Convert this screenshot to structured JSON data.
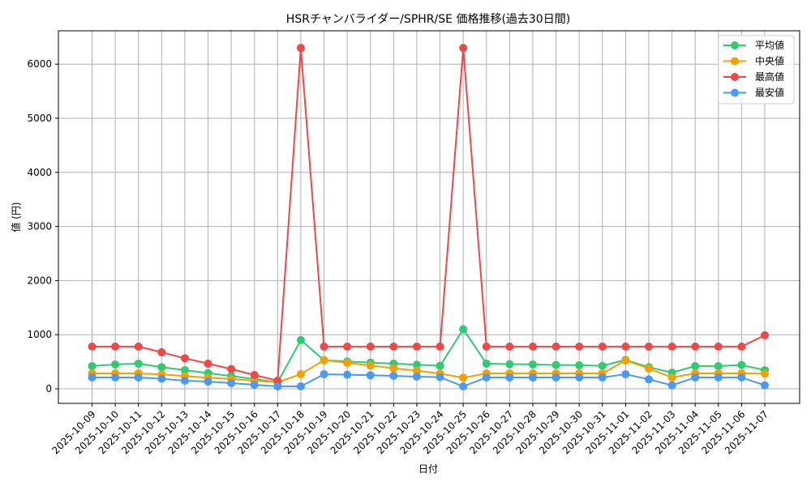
{
  "chart_data": {
    "type": "line",
    "title": "HSRチャンバライダー/SPHR/SE 価格推移(過去30日間)",
    "xlabel": "日付",
    "ylabel": "値 (円)",
    "ylim": [
      -250,
      6600
    ],
    "yticks": [
      0,
      1000,
      2000,
      3000,
      4000,
      5000,
      6000
    ],
    "grid": true,
    "legend_position": "upper right",
    "x": [
      "2025-10-09",
      "2025-10-10",
      "2025-10-11",
      "2025-10-12",
      "2025-10-13",
      "2025-10-14",
      "2025-10-15",
      "2025-10-16",
      "2025-10-17",
      "2025-10-18",
      "2025-10-19",
      "2025-10-20",
      "2025-10-21",
      "2025-10-22",
      "2025-10-23",
      "2025-10-24",
      "2025-10-25",
      "2025-10-26",
      "2025-10-27",
      "2025-10-28",
      "2025-10-29",
      "2025-10-30",
      "2025-10-31",
      "2025-11-01",
      "2025-11-02",
      "2025-11-03",
      "2025-11-04",
      "2025-11-05",
      "2025-11-06",
      "2025-11-07"
    ],
    "series": [
      {
        "name": "平均値",
        "color": "#2ecc71",
        "values": [
          420,
          450,
          465,
          400,
          345,
          290,
          235,
          180,
          120,
          900,
          530,
          505,
          485,
          465,
          445,
          425,
          1100,
          465,
          455,
          450,
          440,
          435,
          425,
          535,
          400,
          300,
          420,
          420,
          440,
          345
        ]
      },
      {
        "name": "中央値",
        "color": "#f5a000",
        "values": [
          285,
          285,
          285,
          265,
          235,
          205,
          180,
          150,
          120,
          270,
          530,
          480,
          430,
          380,
          335,
          280,
          205,
          285,
          285,
          285,
          285,
          285,
          285,
          525,
          375,
          210,
          285,
          285,
          285,
          280
        ]
      },
      {
        "name": "最高値",
        "color": "#f04848",
        "values": [
          780,
          780,
          780,
          675,
          565,
          465,
          365,
          255,
          150,
          6300,
          780,
          780,
          780,
          780,
          780,
          780,
          6300,
          780,
          780,
          780,
          780,
          780,
          780,
          780,
          780,
          780,
          780,
          780,
          780,
          990
        ]
      },
      {
        "name": "最安値",
        "color": "#4a9af5",
        "values": [
          210,
          210,
          210,
          185,
          150,
          135,
          105,
          75,
          45,
          45,
          270,
          260,
          250,
          240,
          225,
          215,
          45,
          210,
          210,
          210,
          210,
          210,
          210,
          270,
          175,
          65,
          210,
          210,
          210,
          65
        ]
      }
    ]
  }
}
